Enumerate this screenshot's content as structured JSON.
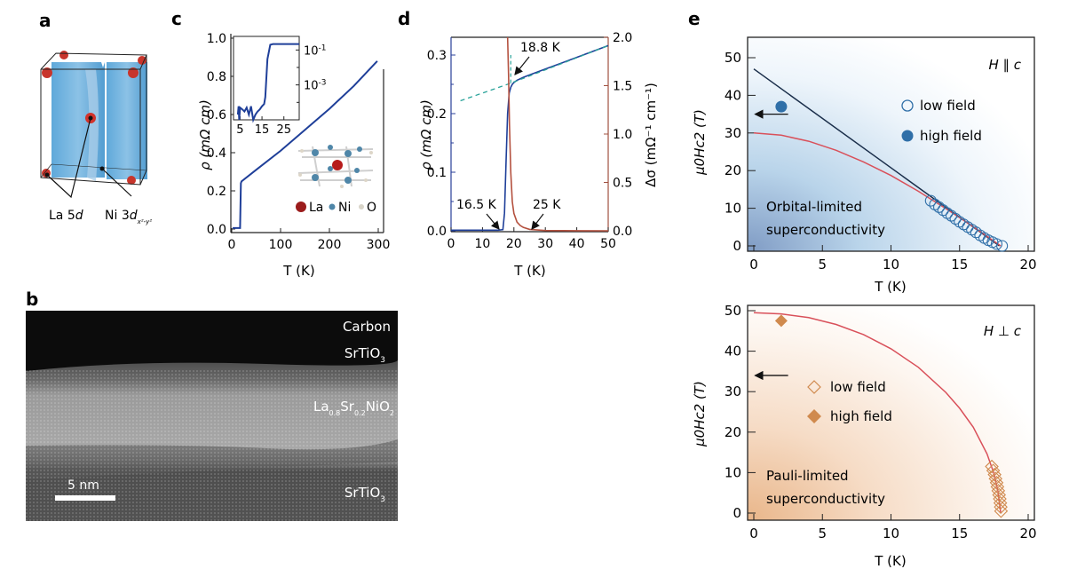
{
  "figure": {
    "panel_labels": [
      "a",
      "b",
      "c",
      "d",
      "e"
    ]
  },
  "panel_a": {
    "labels": {
      "la": "La 5",
      "la_italic": "d",
      "ni": "Ni 3",
      "ni_italic": "d",
      "ni_sub": "x²-y²"
    }
  },
  "panel_b": {
    "layers": [
      "Carbon",
      "SrTiO",
      "La",
      "SrTiO"
    ],
    "layer_labels": {
      "carbon": "Carbon",
      "sto_top": "SrTiO",
      "sto_top_sub": "3",
      "lsno": "La",
      "lsno_sub1": "0.8",
      "lsno_sr": "Sr",
      "lsno_sub2": "0.2",
      "lsno_ni": "NiO",
      "lsno_sub3": "2",
      "sto_bottom": "SrTiO",
      "sto_bottom_sub": "3"
    },
    "scale_bar": "5 nm"
  },
  "chart_data": [
    {
      "panel": "c",
      "type": "line",
      "title": "",
      "xlabel": "T (K)",
      "ylabel": "ρ (mΩ cm)",
      "xlim": [
        0,
        300
      ],
      "ylim": [
        0,
        1.0
      ],
      "xticks": [
        "0",
        "100",
        "200",
        "300"
      ],
      "yticks": [
        "0.0",
        "0.2",
        "0.4",
        "0.6",
        "0.8",
        "1.0"
      ],
      "series": [
        {
          "name": "resistivity",
          "color": "#1f3f99",
          "x": [
            2,
            10,
            17,
            18.8,
            20,
            50,
            100,
            150,
            200,
            250,
            298
          ],
          "y": [
            0.005,
            0.005,
            0.005,
            0.24,
            0.25,
            0.31,
            0.41,
            0.52,
            0.63,
            0.75,
            0.88
          ]
        }
      ],
      "inset": {
        "type": "line",
        "xscale": "linear",
        "yscale": "log",
        "xlim": [
          2,
          32
        ],
        "xticks": [
          "5",
          "15",
          "25"
        ],
        "yticks": [
          "10-1",
          "10-3"
        ],
        "series": [
          {
            "name": "resistivity-log",
            "color": "#1f3f99",
            "x": [
              4,
              4.3,
              4.6,
              5,
              6,
              7,
              8,
              9,
              10,
              11,
              12,
              13,
              14,
              15,
              16,
              16.5,
              17.5,
              18.8,
              20,
              25,
              32
            ],
            "y": [
              2e-05,
              6e-05,
              1e-05,
              5e-05,
              4e-05,
              3e-05,
              5e-05,
              2e-05,
              6e-05,
              1e-05,
              2e-05,
              3e-05,
              4e-05,
              6e-05,
              8e-05,
              0.0002,
              0.03,
              0.2,
              0.22,
              0.22,
              0.22
            ]
          }
        ]
      },
      "legend": {
        "items": [
          "La",
          "Ni",
          "O"
        ],
        "colors": [
          "#9b1c1c",
          "#4f86a8",
          "#d8d4c8"
        ],
        "placement": "bottom-right"
      }
    },
    {
      "panel": "d",
      "type": "line",
      "xlabel": "T (K)",
      "ylabel": "ρ (mΩ cm)",
      "ylabel_right": "Δσ (mΩ⁻¹ cm⁻¹)",
      "xlim": [
        0,
        50
      ],
      "ylim": [
        0,
        0.33
      ],
      "ylim_right": [
        0,
        2.0
      ],
      "xticks": [
        "0",
        "10",
        "20",
        "30",
        "40",
        "50"
      ],
      "yticks": [
        "0.0",
        "0.1",
        "0.2",
        "0.3"
      ],
      "yticks_right": [
        "0.0",
        "0.5",
        "1.0",
        "1.5",
        "2.0"
      ],
      "series": [
        {
          "name": "resistivity",
          "axis": "left",
          "color": "#1f3f99",
          "x": [
            0,
            5,
            10,
            15,
            16.5,
            17,
            17.5,
            18,
            18.5,
            19,
            19.5,
            20,
            21,
            23,
            25,
            30,
            35,
            40,
            45,
            50
          ],
          "y": [
            0.001,
            0.001,
            0.001,
            0.001,
            0.002,
            0.03,
            0.12,
            0.2,
            0.235,
            0.245,
            0.25,
            0.253,
            0.257,
            0.262,
            0.266,
            0.276,
            0.286,
            0.296,
            0.306,
            0.316
          ]
        },
        {
          "name": "normal-state fit",
          "axis": "left",
          "color": "#2aa39a",
          "dashed": true,
          "x": [
            3,
            19,
            50
          ],
          "y": [
            0.222,
            0.252,
            0.316
          ]
        },
        {
          "name": "fluctuation conductivity",
          "axis": "right",
          "color": "#b4513f",
          "x": [
            18,
            18.3,
            18.6,
            19,
            19.5,
            20,
            21,
            22,
            23,
            25,
            30,
            40,
            50
          ],
          "y": [
            2.0,
            1.6,
            1.1,
            0.6,
            0.3,
            0.18,
            0.09,
            0.055,
            0.035,
            0.015,
            0.003,
            0.0005,
            0.0
          ]
        }
      ],
      "annotations": [
        "18.8 K",
        "16.5 K",
        "25 K"
      ]
    },
    {
      "panel": "e-top",
      "type": "scatter",
      "xlabel": "T (K)",
      "ylabel": "μ0Hc2 (T)",
      "xlim": [
        0,
        20
      ],
      "ylim": [
        0,
        50
      ],
      "xticks": [
        "0",
        "5",
        "10",
        "15",
        "20"
      ],
      "yticks": [
        "0",
        "10",
        "20",
        "30",
        "40",
        "50"
      ],
      "field_orientation": "H ∥ c",
      "region_label": [
        "Orbital-limited",
        "superconductivity"
      ],
      "series": [
        {
          "name": "low field",
          "marker": "open-circle",
          "color": "#2f6fa8",
          "x": [
            12.9,
            13.2,
            13.5,
            13.8,
            14.1,
            14.4,
            14.7,
            15.0,
            15.3,
            15.6,
            15.9,
            16.2,
            16.5,
            16.8,
            17.1,
            17.4,
            17.7,
            18.1
          ],
          "y": [
            12,
            11,
            10.3,
            9.5,
            8.7,
            8,
            7.2,
            6.4,
            5.7,
            5,
            4.3,
            3.6,
            2.8,
            2.1,
            1.5,
            1,
            0.5,
            0
          ]
        },
        {
          "name": "high field",
          "marker": "filled-circle",
          "color": "#2f6fa8",
          "x": [
            2
          ],
          "y": [
            37
          ]
        },
        {
          "name": "linear fit",
          "type": "line",
          "color": "#1a2e4a",
          "x": [
            0,
            17.9
          ],
          "y": [
            47,
            0
          ]
        },
        {
          "name": "WHH fit",
          "type": "line",
          "color": "#d9505a",
          "x": [
            0,
            2,
            4,
            6,
            8,
            10,
            12,
            14,
            16,
            18
          ],
          "y": [
            30,
            29.4,
            27.8,
            25.4,
            22.3,
            18.7,
            14.5,
            9.9,
            5.1,
            0
          ]
        }
      ],
      "arrow_at": 35,
      "legend": {
        "items": [
          "low field",
          "high field"
        ],
        "placement": "top-right"
      }
    },
    {
      "panel": "e-bottom",
      "type": "scatter",
      "xlabel": "T (K)",
      "ylabel": "μ0Hc2 (T)",
      "xlim": [
        0,
        20
      ],
      "ylim": [
        0,
        50
      ],
      "xticks": [
        "0",
        "5",
        "10",
        "15",
        "20"
      ],
      "yticks": [
        "0",
        "10",
        "20",
        "30",
        "40",
        "50"
      ],
      "field_orientation": "H ⊥ c",
      "region_label": [
        "Pauli-limited",
        "superconductivity"
      ],
      "series": [
        {
          "name": "low field",
          "marker": "open-diamond",
          "color": "#d08a4e",
          "x": [
            17.35,
            17.45,
            17.55,
            17.62,
            17.7,
            17.76,
            17.82,
            17.88,
            17.93,
            17.97,
            18.0,
            18.02
          ],
          "y": [
            11.5,
            10.5,
            9.5,
            8.5,
            7.5,
            6.5,
            5.5,
            4.5,
            3.5,
            2.5,
            1.5,
            0.5
          ]
        },
        {
          "name": "high field",
          "marker": "filled-diamond",
          "color": "#d08a4e",
          "x": [
            2
          ],
          "y": [
            47.5
          ]
        },
        {
          "name": "Pauli fit",
          "type": "line",
          "color": "#d9505a",
          "x": [
            0,
            2,
            4,
            6,
            8,
            10,
            12,
            14,
            15,
            16,
            17,
            17.5,
            17.8,
            18.0
          ],
          "y": [
            49.5,
            49.2,
            48.3,
            46.6,
            44.1,
            40.6,
            36.0,
            29.8,
            25.9,
            21.2,
            14.6,
            9.8,
            5.4,
            0
          ]
        }
      ],
      "arrow_at": 34,
      "legend": {
        "items": [
          "low field",
          "high field"
        ],
        "placement": "center-left"
      }
    }
  ]
}
